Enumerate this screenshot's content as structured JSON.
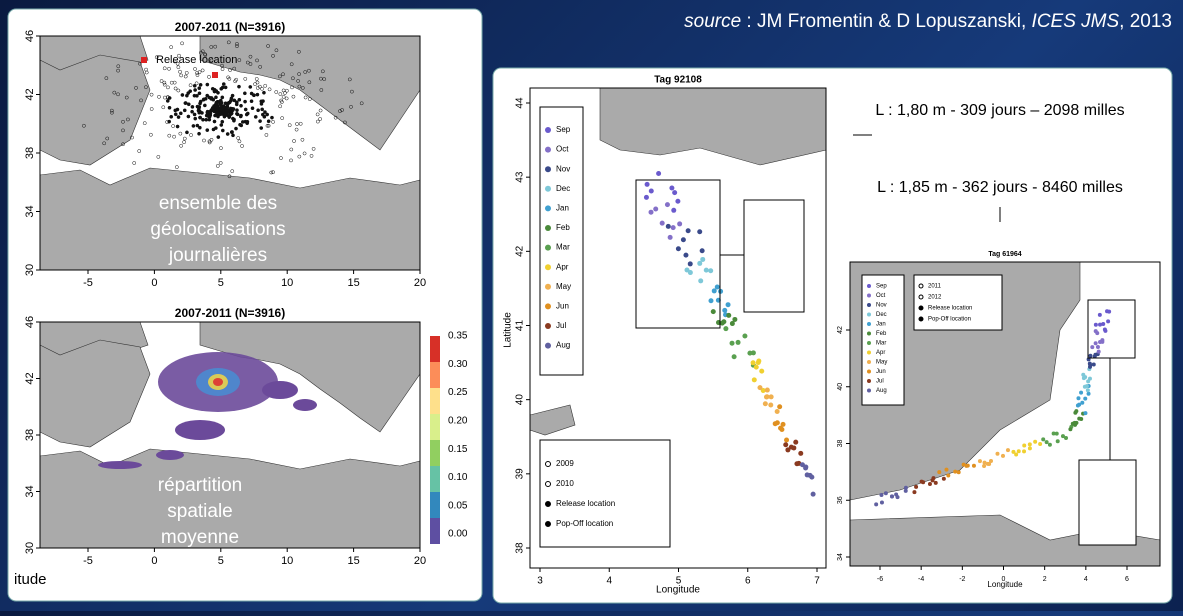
{
  "source": {
    "prefix": "source",
    "authors": " : JM Fromentin & D Lopuszanski, ",
    "journal": "ICES JMS",
    "year": ", 2013"
  },
  "left_top": {
    "title": "2007-2011 (N=3916)",
    "legend": "Release location",
    "xticks": [
      "-5",
      "0",
      "5",
      "10",
      "15",
      "20"
    ],
    "yticks": [
      "46",
      "42",
      "38",
      "34",
      "30"
    ],
    "overlay": [
      "ensemble des",
      "géolocalisations",
      "journalières"
    ]
  },
  "left_bottom": {
    "title": "2007-2011 (N=3916)",
    "xticks": [
      "-5",
      "0",
      "5",
      "10",
      "15",
      "20"
    ],
    "yticks": [
      "46",
      "42",
      "38",
      "34",
      "30"
    ],
    "colorbar_ticks": [
      "0.35",
      "0.30",
      "0.25",
      "0.20",
      "0.15",
      "0.10",
      "0.05",
      "0.00"
    ],
    "overlay": [
      "répartition",
      "spatiale",
      "moyenne"
    ],
    "xlabel": "itude"
  },
  "tag1": {
    "title": "Tag 92108",
    "xlabel": "Longitude",
    "ylabel": "Latitude",
    "xticks": [
      "3",
      "4",
      "5",
      "6",
      "7"
    ],
    "yticks": [
      "44",
      "43",
      "42",
      "41",
      "40",
      "39",
      "38"
    ],
    "months": [
      "Sep",
      "Oct",
      "Nov",
      "Dec",
      "Jan",
      "Feb",
      "Mar",
      "Apr",
      "May",
      "Jun",
      "Jul",
      "Aug"
    ],
    "symbols": [
      "2009",
      "2010",
      "Release location",
      "Pop-Off location"
    ]
  },
  "annotations": [
    "L : 1,80 m - 309 jours – 2098 milles",
    "L : 1,85 m - 362 jours - 8460 milles"
  ],
  "tag2": {
    "title": "Tag 61964",
    "xlabel": "Longitude",
    "xticks": [
      "-6",
      "-4",
      "-2",
      "0",
      "2",
      "4",
      "6"
    ],
    "yticks": [
      "42",
      "40",
      "38",
      "36",
      "34"
    ],
    "months": [
      "Sep",
      "Oct",
      "Nov",
      "Dec",
      "Jan",
      "Feb",
      "Mar",
      "Apr",
      "May",
      "Jun",
      "Jul",
      "Aug"
    ],
    "symbols": [
      "2011",
      "2012",
      "Release location",
      "Pop-Off location"
    ]
  }
}
